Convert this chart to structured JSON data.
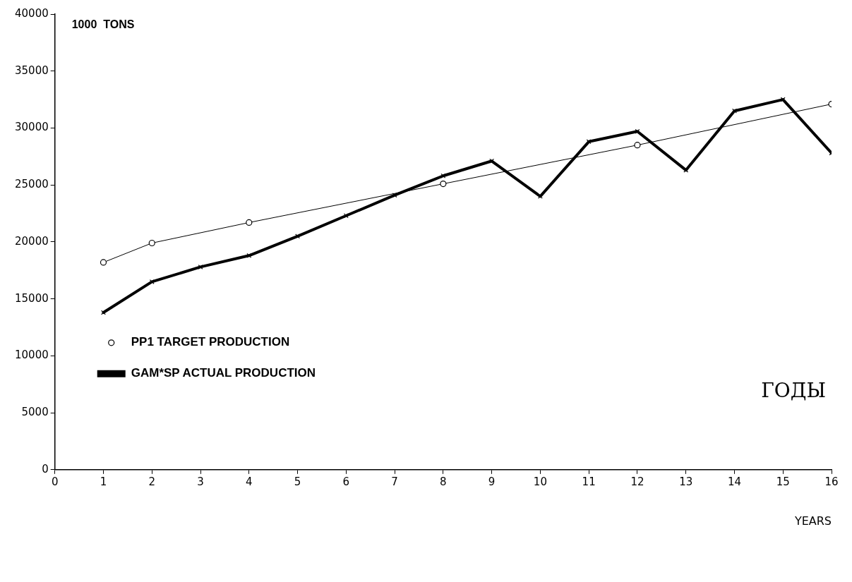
{
  "chart_data": {
    "type": "line",
    "ylabel": "1000  TONS",
    "xlabel": "YEARS",
    "annotations": [
      "ГОДЫ"
    ],
    "xlim": [
      0,
      16
    ],
    "xticks": [
      0,
      1,
      2,
      3,
      4,
      5,
      6,
      7,
      8,
      9,
      10,
      11,
      12,
      13,
      14,
      15,
      16
    ],
    "ylim": [
      0,
      40000
    ],
    "yticks": [
      0,
      5000,
      10000,
      15000,
      20000,
      25000,
      30000,
      35000,
      40000
    ],
    "legend": "bottom left",
    "line_style": "solid",
    "series": [
      {
        "name": "PP1 TARGET PRODUCTION",
        "color": "#000000",
        "marker": "circle",
        "x": [
          1,
          2,
          4,
          8,
          12,
          16
        ],
        "values": [
          18200,
          19900,
          21700,
          25100,
          28500,
          32100
        ]
      },
      {
        "name": "GAM*SP ACTUAL PRODUCTION",
        "color": "#000000",
        "marker": "cross",
        "x": [
          1,
          2,
          3,
          4,
          5,
          6,
          7,
          8,
          9,
          10,
          11,
          12,
          13,
          14,
          15,
          16
        ],
        "values": [
          13800,
          16500,
          17800,
          18800,
          20500,
          22300,
          24100,
          25800,
          27100,
          24000,
          28800,
          29700,
          26300,
          31500,
          32500,
          27800
        ]
      }
    ]
  }
}
